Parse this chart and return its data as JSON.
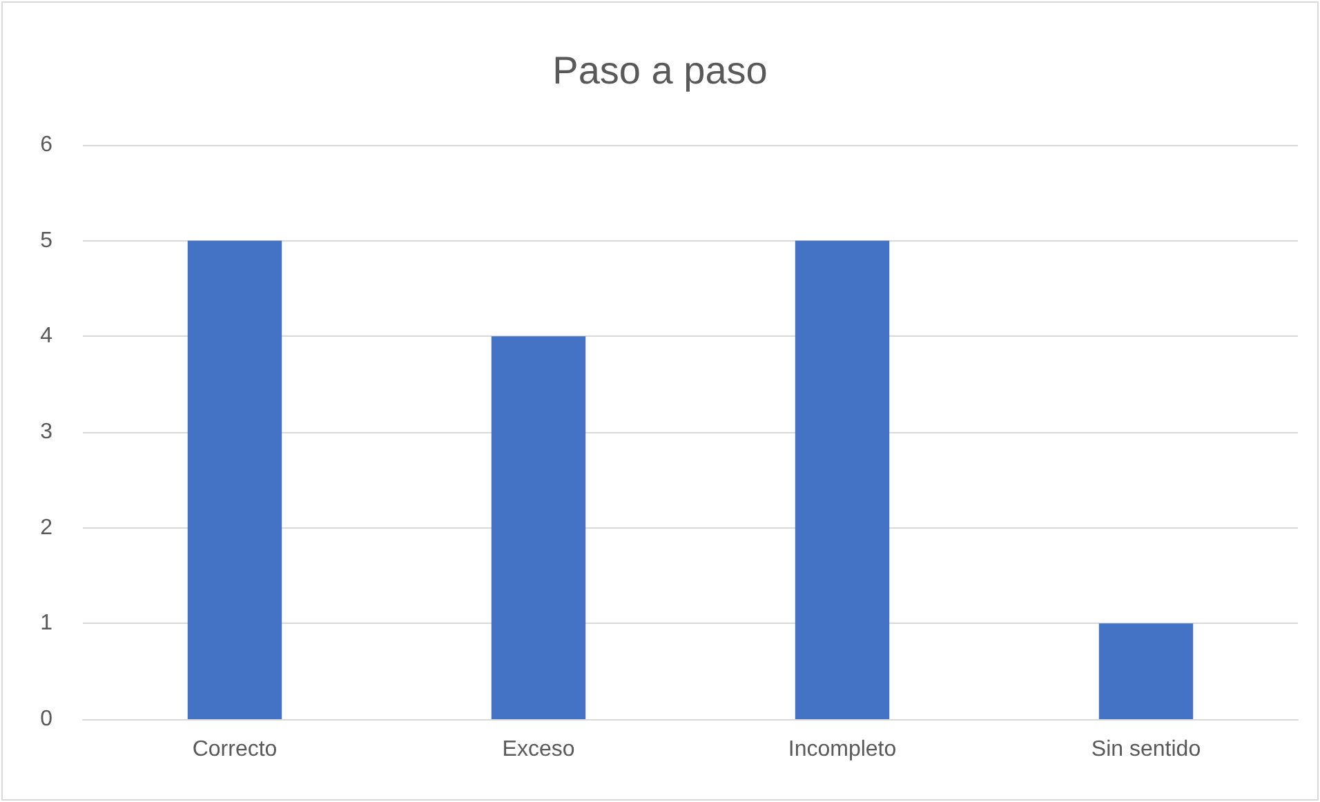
{
  "chart_data": {
    "type": "bar",
    "title": "Paso a paso",
    "categories": [
      "Correcto",
      "Exceso",
      "Incompleto",
      "Sin sentido"
    ],
    "values": [
      5,
      4,
      5,
      1
    ],
    "color": "#4472c4",
    "ylim": [
      0,
      6
    ],
    "yticks": [
      0,
      1,
      2,
      3,
      4,
      5,
      6
    ],
    "grid": "y"
  }
}
